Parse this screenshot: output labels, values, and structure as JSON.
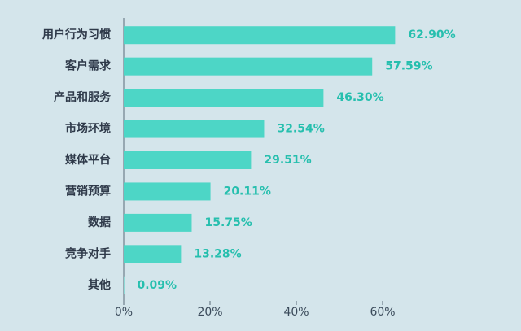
{
  "chart_data": {
    "type": "bar",
    "orientation": "horizontal",
    "categories": [
      "用户行为习惯",
      "客户需求",
      "产品和服务",
      "市场环境",
      "媒体平台",
      "营销预算",
      "数据",
      "竞争对手",
      "其他"
    ],
    "values": [
      62.9,
      57.59,
      46.3,
      32.54,
      29.51,
      20.11,
      15.75,
      13.28,
      0.09
    ],
    "value_labels": [
      "62.90%",
      "57.59%",
      "46.30%",
      "32.54%",
      "29.51%",
      "20.11%",
      "15.75%",
      "13.28%",
      "0.09%"
    ],
    "color": "#4dd6c6",
    "xlim": [
      0,
      90
    ],
    "xticks": [
      {
        "value": 0,
        "label": "0%"
      },
      {
        "value": 20,
        "label": "20%"
      },
      {
        "value": 40,
        "label": "40%"
      },
      {
        "value": 60,
        "label": "60%"
      }
    ]
  }
}
